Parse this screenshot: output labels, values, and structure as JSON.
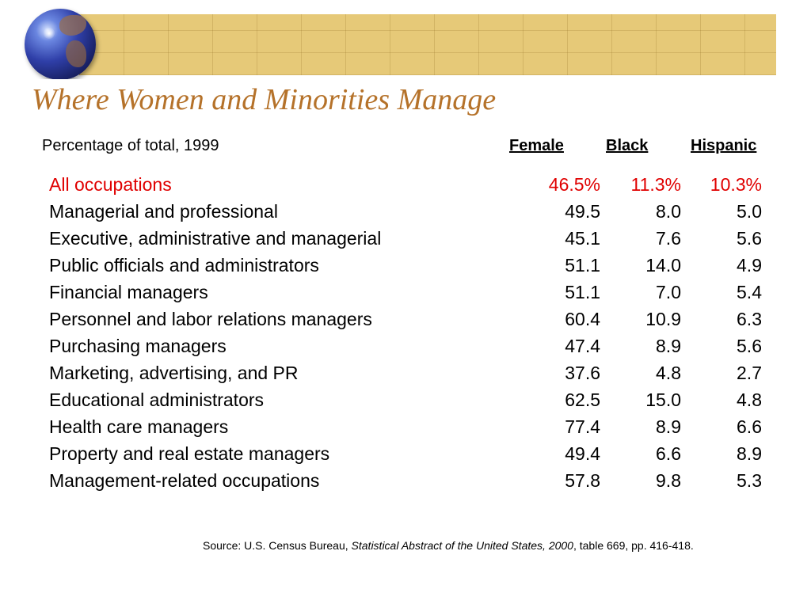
{
  "title": "Where Women and Minorities Manage",
  "subtitle": "Percentage of total, 1999",
  "columns": {
    "female": "Female",
    "black": "Black",
    "hispanic": "Hispanic"
  },
  "rows": [
    {
      "label": "All occupations",
      "female": "46.5%",
      "black": "11.3%",
      "hispanic": "10.3%"
    },
    {
      "label": "Managerial and professional",
      "female": "49.5",
      "black": "8.0",
      "hispanic": "5.0"
    },
    {
      "label": "Executive, administrative and managerial",
      "female": "45.1",
      "black": "7.6",
      "hispanic": "5.6"
    },
    {
      "label": "Public officials and administrators",
      "female": "51.1",
      "black": "14.0",
      "hispanic": "4.9"
    },
    {
      "label": "Financial managers",
      "female": "51.1",
      "black": "7.0",
      "hispanic": "5.4"
    },
    {
      "label": "Personnel and labor relations managers",
      "female": "60.4",
      "black": "10.9",
      "hispanic": "6.3"
    },
    {
      "label": "Purchasing managers",
      "female": "47.4",
      "black": "8.9",
      "hispanic": "5.6"
    },
    {
      "label": "Marketing, advertising, and PR",
      "female": "37.6",
      "black": "4.8",
      "hispanic": "2.7"
    },
    {
      "label": "Educational administrators",
      "female": "62.5",
      "black": "15.0",
      "hispanic": "4.8"
    },
    {
      "label": "Health care managers",
      "female": "77.4",
      "black": "8.9",
      "hispanic": "6.6"
    },
    {
      "label": "Property and real estate managers",
      "female": "49.4",
      "black": "6.6",
      "hispanic": "8.9"
    },
    {
      "label": "Management-related occupations",
      "female": "57.8",
      "black": "9.8",
      "hispanic": "5.3"
    }
  ],
  "source": {
    "prefix": "Source: U.S. Census Bureau, ",
    "publication": "Statistical Abstract of the United States, 2000",
    "suffix": ", table 669, pp. 416-418."
  },
  "colors": {
    "title": "#b5722a",
    "highlight_row": "#e00000",
    "banner": "#e6c978"
  }
}
